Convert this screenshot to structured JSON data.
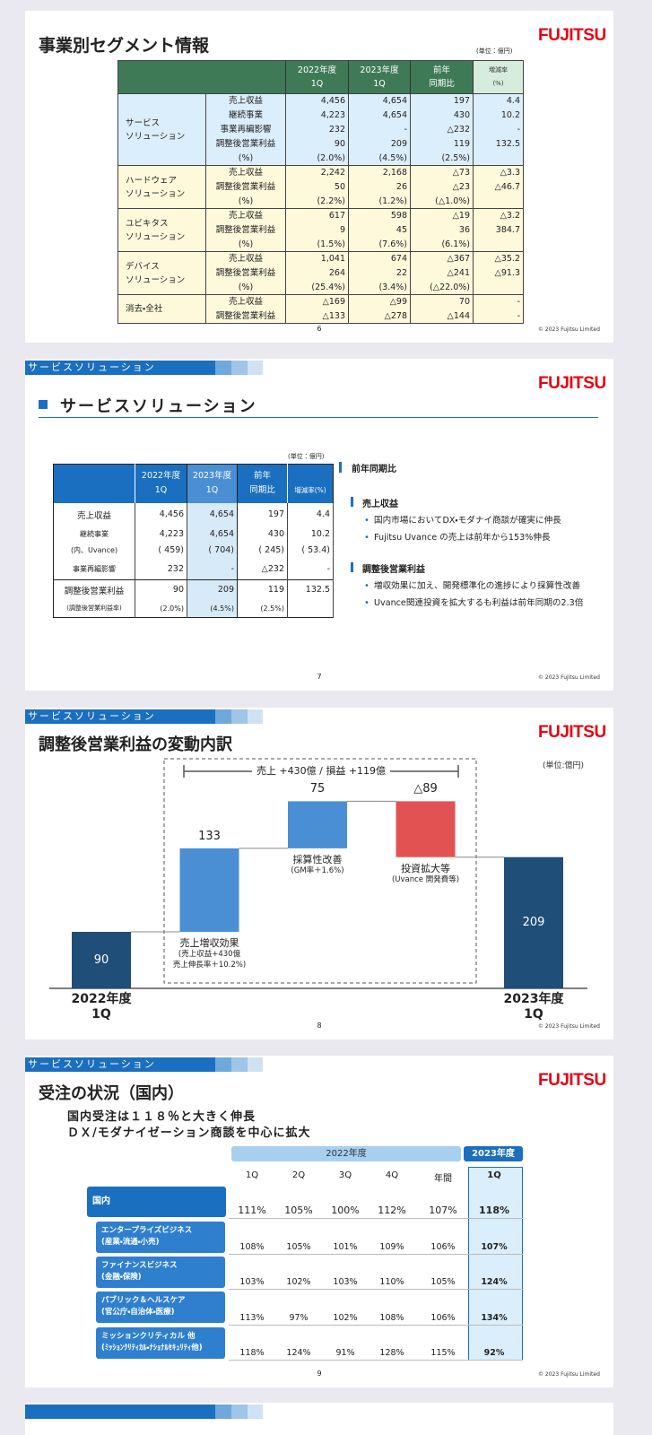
{
  "slides": [
    {
      "title": "事業別セグメント情報",
      "unit": "(単位：億円)",
      "logo": "FUJITSU",
      "page": "6",
      "copyright": "© 2023 Fujitsu Limited",
      "table": {
        "header": [
          "2022年度\n1Q",
          "2023年度\n1Q",
          "前年\n同期比",
          "増減率\n(%)"
        ],
        "groups": [
          {
            "segment": "サービス\nソリューション",
            "rows": [
              {
                "item": "売上収益",
                "values": [
                  "4,456",
                  "4,654",
                  "197",
                  "4.4"
                ]
              },
              {
                "item": "継続事業",
                "values": [
                  "4,223",
                  "4,654",
                  "430",
                  "10.2"
                ]
              },
              {
                "item": "事業再編影響",
                "values": [
                  "232",
                  "-",
                  "△232",
                  "-"
                ]
              },
              {
                "item": "調整後営業利益",
                "values": [
                  "90",
                  "209",
                  "119",
                  "132.5"
                ]
              },
              {
                "item": "(%)",
                "values": [
                  "(2.0%)",
                  "(4.5%)",
                  "(2.5%)",
                  null
                ]
              }
            ]
          },
          {
            "segment": "ハードウェア\nソリューション",
            "rows": [
              {
                "item": "売上収益",
                "values": [
                  "2,242",
                  "2,168",
                  "△73",
                  "△3.3"
                ]
              },
              {
                "item": "調整後営業利益",
                "values": [
                  "50",
                  "26",
                  "△23",
                  "△46.7"
                ]
              },
              {
                "item": "(%)",
                "values": [
                  "(2.2%)",
                  "(1.2%)",
                  "(△1.0%)",
                  null
                ]
              }
            ]
          },
          {
            "segment": "ユビキタス\nソリューション",
            "rows": [
              {
                "item": "売上収益",
                "values": [
                  "617",
                  "598",
                  "△19",
                  "△3.2"
                ]
              },
              {
                "item": "調整後営業利益",
                "values": [
                  "9",
                  "45",
                  "36",
                  "384.7"
                ]
              },
              {
                "item": "(%)",
                "values": [
                  "(1.5%)",
                  "(7.6%)",
                  "(6.1%)",
                  null
                ]
              }
            ]
          },
          {
            "segment": "デバイス\nソリューション",
            "rows": [
              {
                "item": "売上収益",
                "values": [
                  "1,041",
                  "674",
                  "△367",
                  "△35.2"
                ]
              },
              {
                "item": "調整後営業利益",
                "values": [
                  "264",
                  "22",
                  "△241",
                  "△91.3"
                ]
              },
              {
                "item": "(%)",
                "values": [
                  "(25.4%)",
                  "(3.4%)",
                  "(△22.0%)",
                  null
                ]
              }
            ]
          },
          {
            "segment": "消去・全社",
            "rows": [
              {
                "item": "売上収益",
                "values": [
                  "△169",
                  "△99",
                  "70",
                  "-"
                ]
              },
              {
                "item": "調整後営業利益",
                "values": [
                  "△133",
                  "△278",
                  "△144",
                  "-"
                ]
              }
            ]
          }
        ]
      }
    },
    {
      "section": "サービスソリューション",
      "title": "サービスソリューション",
      "unit": "(単位：億円)",
      "logo": "FUJITSU",
      "page": "7",
      "copyright": "© 2023 Fujitsu Limited",
      "table": {
        "header": [
          "2022年度\n1Q",
          "2023年度\n1Q",
          "前年\n同期比",
          "増減率(%)"
        ],
        "rows": [
          {
            "label": "売上収益",
            "values": [
              "4,456",
              "4,654",
              "197",
              "4.4"
            ]
          },
          {
            "label": "継続事業",
            "values": [
              "4,223",
              "4,654",
              "430",
              "10.2"
            ]
          },
          {
            "label": "(内、Uvance)",
            "values": [
              "( 459)",
              "( 704)",
              "( 245)",
              "( 53.4)"
            ]
          },
          {
            "label": "事業再編影響",
            "values": [
              "232",
              "-",
              "△232",
              "-"
            ]
          },
          {
            "label": "調整後営業利益",
            "values": [
              "90",
              "209",
              "119",
              "132.5"
            ]
          },
          {
            "label": "(調整後営業利益率)",
            "values": [
              "(2.0%)",
              "(4.5%)",
              "(2.5%)",
              null
            ]
          }
        ]
      },
      "notes": {
        "heading": "前年同期比",
        "sections": [
          {
            "heading": "売上収益",
            "bullets": [
              "国内市場においてDX・モダナイ商談が確実に伸長",
              "Fujitsu Uvance の売上は前年から153%伸長"
            ]
          },
          {
            "heading": "調整後営業利益",
            "bullets": [
              "増収効果に加え、開発標準化の進捗により採算性改善",
              "Uvance関連投資を拡大するも利益は前年同期の2.3倍"
            ]
          }
        ]
      }
    },
    {
      "section": "サービスソリューション",
      "title": "調整後営業利益の変動内訳",
      "unit": "(単位:億円)",
      "logo": "FUJITSU",
      "page": "8",
      "copyright": "© 2023 Fujitsu Limited",
      "bracket": "売上 +430億 / 損益 +119億",
      "chart": {
        "type": "waterfall",
        "categories": [
          "2022年度\n1Q",
          "売上増収効果",
          "採算性改善",
          "投資拡大等",
          "2023年度\n1Q"
        ],
        "notes": [
          null,
          "(売上収益+430億\n売上伸長率＋10.2%)",
          "(GM率＋1.6%)",
          "(Uvance 開発費等)",
          null
        ],
        "values": [
          90,
          133,
          75,
          -89,
          209
        ],
        "value_labels": [
          "90",
          "133",
          "75",
          "△89",
          "209"
        ],
        "colors": [
          "#1f4e79",
          "#4a8fd4",
          "#4a8fd4",
          "#e25252",
          "#1f4e79"
        ]
      }
    },
    {
      "section": "サービスソリューション",
      "title": "受注の状況（国内）",
      "logo": "FUJITSU",
      "page": "9",
      "copyright": "© 2023 Fujitsu Limited",
      "subtitle": [
        "国内受注は１１８％と大きく伸長",
        "ＤＸ/モダナイゼーション商談を中心に拡大"
      ],
      "table": {
        "years": [
          "2022年度",
          "2023年度"
        ],
        "columns": [
          "1Q",
          "2Q",
          "3Q",
          "4Q",
          "年間",
          "1Q"
        ],
        "rows": [
          {
            "label": "国内",
            "values": [
              "111%",
              "105%",
              "100%",
              "112%",
              "107%",
              "118%"
            ]
          },
          {
            "label": "エンタープライズビジネス\n(産業・流通・小売)",
            "values": [
              "108%",
              "105%",
              "101%",
              "109%",
              "106%",
              "107%"
            ]
          },
          {
            "label": "ファイナンスビジネス\n(金融・保険)",
            "values": [
              "103%",
              "102%",
              "103%",
              "110%",
              "105%",
              "124%"
            ]
          },
          {
            "label": "パブリック＆ヘルスケア\n(官公庁・自治体・医療)",
            "values": [
              "113%",
              "97%",
              "102%",
              "108%",
              "106%",
              "134%"
            ]
          },
          {
            "label": "ミッションクリティカル 他\n(ﾐｯｼｮﾝｸﾘﾃｨｶﾙ・ﾅｼｮﾅﾙｾｷｭﾘﾃｨ他)",
            "values": [
              "118%",
              "124%",
              "91%",
              "128%",
              "115%",
              "92%"
            ]
          }
        ]
      }
    }
  ]
}
